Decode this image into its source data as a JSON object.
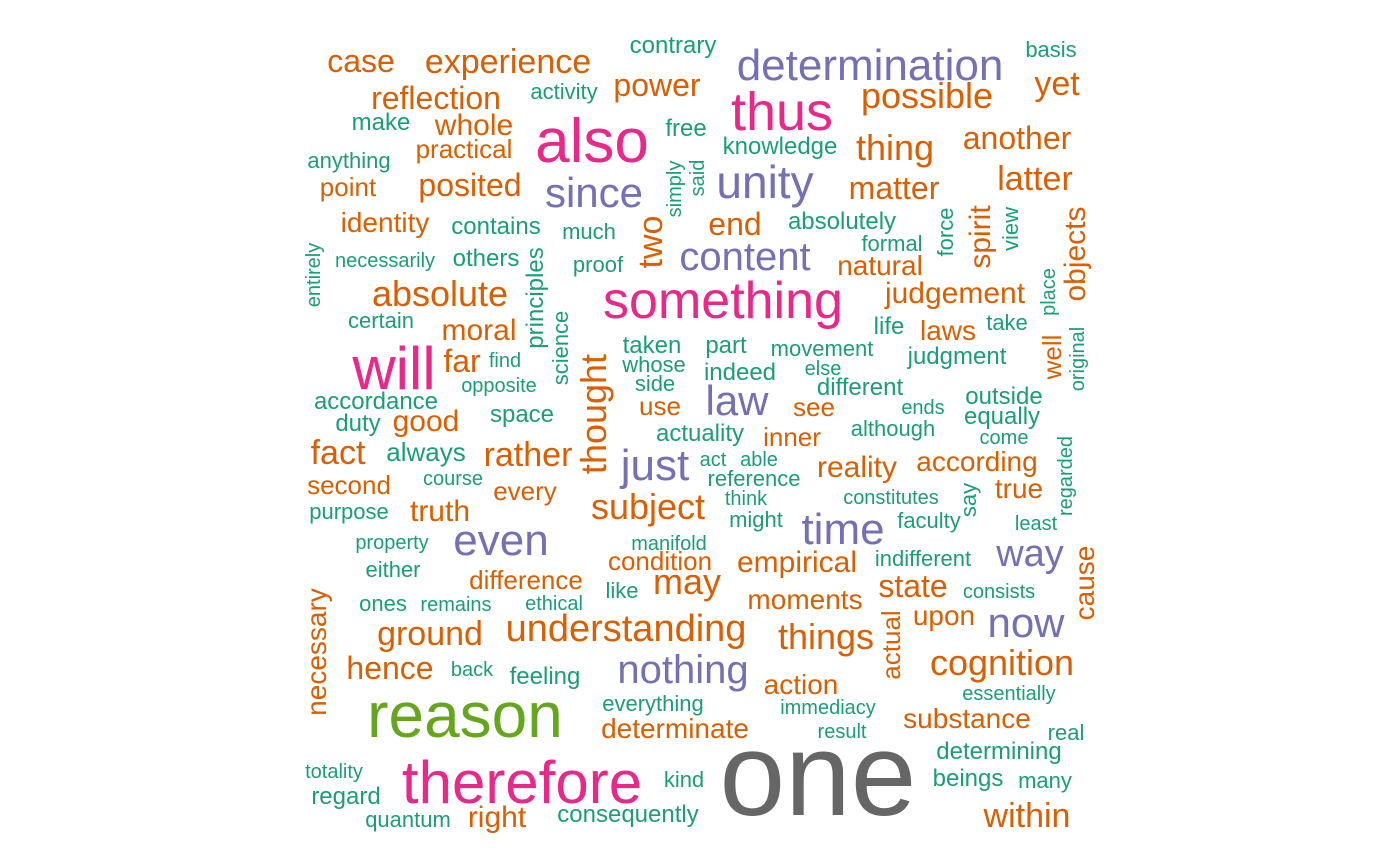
{
  "palette": {
    "teal": "#1b9e77",
    "orange": "#d95f02",
    "purple": "#7570b3",
    "magenta": "#e7298a",
    "green": "#66a61e",
    "gray": "#666666"
  },
  "words": [
    {
      "text": "one",
      "color": "gray"
    },
    {
      "text": "reason",
      "color": "green"
    },
    {
      "text": "therefore",
      "color": "magenta"
    },
    {
      "text": "also",
      "color": "magenta"
    },
    {
      "text": "something",
      "color": "magenta"
    },
    {
      "text": "will",
      "color": "magenta"
    },
    {
      "text": "thus",
      "color": "magenta"
    },
    {
      "text": "determination",
      "color": "purple"
    },
    {
      "text": "unity",
      "color": "purple"
    },
    {
      "text": "since",
      "color": "purple"
    },
    {
      "text": "content",
      "color": "purple"
    },
    {
      "text": "even",
      "color": "purple"
    },
    {
      "text": "time",
      "color": "purple"
    },
    {
      "text": "just",
      "color": "purple"
    },
    {
      "text": "law",
      "color": "purple"
    },
    {
      "text": "nothing",
      "color": "purple"
    },
    {
      "text": "now",
      "color": "purple"
    },
    {
      "text": "way",
      "color": "purple"
    },
    {
      "text": "case",
      "color": "orange"
    },
    {
      "text": "experience",
      "color": "orange"
    },
    {
      "text": "reflection",
      "color": "orange"
    },
    {
      "text": "whole",
      "color": "orange"
    },
    {
      "text": "practical",
      "color": "orange"
    },
    {
      "text": "point",
      "color": "orange"
    },
    {
      "text": "posited",
      "color": "orange"
    },
    {
      "text": "identity",
      "color": "orange"
    },
    {
      "text": "absolute",
      "color": "orange"
    },
    {
      "text": "moral",
      "color": "orange"
    },
    {
      "text": "far",
      "color": "orange"
    },
    {
      "text": "good",
      "color": "orange"
    },
    {
      "text": "fact",
      "color": "orange"
    },
    {
      "text": "rather",
      "color": "orange"
    },
    {
      "text": "second",
      "color": "orange"
    },
    {
      "text": "truth",
      "color": "orange"
    },
    {
      "text": "every",
      "color": "orange"
    },
    {
      "text": "difference",
      "color": "orange"
    },
    {
      "text": "ground",
      "color": "orange"
    },
    {
      "text": "hence",
      "color": "orange"
    },
    {
      "text": "necessary",
      "color": "orange"
    },
    {
      "text": "right",
      "color": "orange"
    },
    {
      "text": "power",
      "color": "orange"
    },
    {
      "text": "possible",
      "color": "orange"
    },
    {
      "text": "yet",
      "color": "orange"
    },
    {
      "text": "thing",
      "color": "orange"
    },
    {
      "text": "another",
      "color": "orange"
    },
    {
      "text": "matter",
      "color": "orange"
    },
    {
      "text": "latter",
      "color": "orange"
    },
    {
      "text": "end",
      "color": "orange"
    },
    {
      "text": "two",
      "color": "orange"
    },
    {
      "text": "natural",
      "color": "orange"
    },
    {
      "text": "judgement",
      "color": "orange"
    },
    {
      "text": "spirit",
      "color": "orange"
    },
    {
      "text": "objects",
      "color": "orange"
    },
    {
      "text": "laws",
      "color": "orange"
    },
    {
      "text": "thought",
      "color": "orange"
    },
    {
      "text": "use",
      "color": "orange"
    },
    {
      "text": "see",
      "color": "orange"
    },
    {
      "text": "inner",
      "color": "orange"
    },
    {
      "text": "reality",
      "color": "orange"
    },
    {
      "text": "according",
      "color": "orange"
    },
    {
      "text": "true",
      "color": "orange"
    },
    {
      "text": "subject",
      "color": "orange"
    },
    {
      "text": "condition",
      "color": "orange"
    },
    {
      "text": "empirical",
      "color": "orange"
    },
    {
      "text": "may",
      "color": "orange"
    },
    {
      "text": "moments",
      "color": "orange"
    },
    {
      "text": "state",
      "color": "orange"
    },
    {
      "text": "understanding",
      "color": "orange"
    },
    {
      "text": "things",
      "color": "orange"
    },
    {
      "text": "upon",
      "color": "orange"
    },
    {
      "text": "cognition",
      "color": "orange"
    },
    {
      "text": "action",
      "color": "orange"
    },
    {
      "text": "substance",
      "color": "orange"
    },
    {
      "text": "determinate",
      "color": "orange"
    },
    {
      "text": "within",
      "color": "orange"
    },
    {
      "text": "cause",
      "color": "orange"
    },
    {
      "text": "actual",
      "color": "orange"
    },
    {
      "text": "well",
      "color": "orange"
    },
    {
      "text": "contrary",
      "color": "teal"
    },
    {
      "text": "activity",
      "color": "teal"
    },
    {
      "text": "make",
      "color": "teal"
    },
    {
      "text": "anything",
      "color": "teal"
    },
    {
      "text": "free",
      "color": "teal"
    },
    {
      "text": "knowledge",
      "color": "teal"
    },
    {
      "text": "basis",
      "color": "teal"
    },
    {
      "text": "contains",
      "color": "teal"
    },
    {
      "text": "much",
      "color": "teal"
    },
    {
      "text": "absolutely",
      "color": "teal"
    },
    {
      "text": "simply",
      "color": "teal"
    },
    {
      "text": "said",
      "color": "teal"
    },
    {
      "text": "force",
      "color": "teal"
    },
    {
      "text": "view",
      "color": "teal"
    },
    {
      "text": "formal",
      "color": "teal"
    },
    {
      "text": "necessarily",
      "color": "teal"
    },
    {
      "text": "others",
      "color": "teal"
    },
    {
      "text": "proof",
      "color": "teal"
    },
    {
      "text": "entirely",
      "color": "teal"
    },
    {
      "text": "principles",
      "color": "teal"
    },
    {
      "text": "certain",
      "color": "teal"
    },
    {
      "text": "science",
      "color": "teal"
    },
    {
      "text": "life",
      "color": "teal"
    },
    {
      "text": "take",
      "color": "teal"
    },
    {
      "text": "place",
      "color": "teal"
    },
    {
      "text": "original",
      "color": "teal"
    },
    {
      "text": "taken",
      "color": "teal"
    },
    {
      "text": "part",
      "color": "teal"
    },
    {
      "text": "movement",
      "color": "teal"
    },
    {
      "text": "judgment",
      "color": "teal"
    },
    {
      "text": "find",
      "color": "teal"
    },
    {
      "text": "whose",
      "color": "teal"
    },
    {
      "text": "else",
      "color": "teal"
    },
    {
      "text": "opposite",
      "color": "teal"
    },
    {
      "text": "side",
      "color": "teal"
    },
    {
      "text": "indeed",
      "color": "teal"
    },
    {
      "text": "different",
      "color": "teal"
    },
    {
      "text": "accordance",
      "color": "teal"
    },
    {
      "text": "duty",
      "color": "teal"
    },
    {
      "text": "space",
      "color": "teal"
    },
    {
      "text": "ends",
      "color": "teal"
    },
    {
      "text": "outside",
      "color": "teal"
    },
    {
      "text": "equally",
      "color": "teal"
    },
    {
      "text": "actuality",
      "color": "teal"
    },
    {
      "text": "although",
      "color": "teal"
    },
    {
      "text": "come",
      "color": "teal"
    },
    {
      "text": "always",
      "color": "teal"
    },
    {
      "text": "act",
      "color": "teal"
    },
    {
      "text": "able",
      "color": "teal"
    },
    {
      "text": "course",
      "color": "teal"
    },
    {
      "text": "reference",
      "color": "teal"
    },
    {
      "text": "regarded",
      "color": "teal"
    },
    {
      "text": "think",
      "color": "teal"
    },
    {
      "text": "constitutes",
      "color": "teal"
    },
    {
      "text": "say",
      "color": "teal"
    },
    {
      "text": "purpose",
      "color": "teal"
    },
    {
      "text": "might",
      "color": "teal"
    },
    {
      "text": "faculty",
      "color": "teal"
    },
    {
      "text": "least",
      "color": "teal"
    },
    {
      "text": "property",
      "color": "teal"
    },
    {
      "text": "manifold",
      "color": "teal"
    },
    {
      "text": "either",
      "color": "teal"
    },
    {
      "text": "indifferent",
      "color": "teal"
    },
    {
      "text": "like",
      "color": "teal"
    },
    {
      "text": "consists",
      "color": "teal"
    },
    {
      "text": "ones",
      "color": "teal"
    },
    {
      "text": "remains",
      "color": "teal"
    },
    {
      "text": "ethical",
      "color": "teal"
    },
    {
      "text": "back",
      "color": "teal"
    },
    {
      "text": "feeling",
      "color": "teal"
    },
    {
      "text": "everything",
      "color": "teal"
    },
    {
      "text": "essentially",
      "color": "teal"
    },
    {
      "text": "immediacy",
      "color": "teal"
    },
    {
      "text": "result",
      "color": "teal"
    },
    {
      "text": "real",
      "color": "teal"
    },
    {
      "text": "determining",
      "color": "teal"
    },
    {
      "text": "totality",
      "color": "teal"
    },
    {
      "text": "kind",
      "color": "teal"
    },
    {
      "text": "beings",
      "color": "teal"
    },
    {
      "text": "many",
      "color": "teal"
    },
    {
      "text": "regard",
      "color": "teal"
    },
    {
      "text": "quantum",
      "color": "teal"
    },
    {
      "text": "consequently",
      "color": "teal"
    }
  ]
}
